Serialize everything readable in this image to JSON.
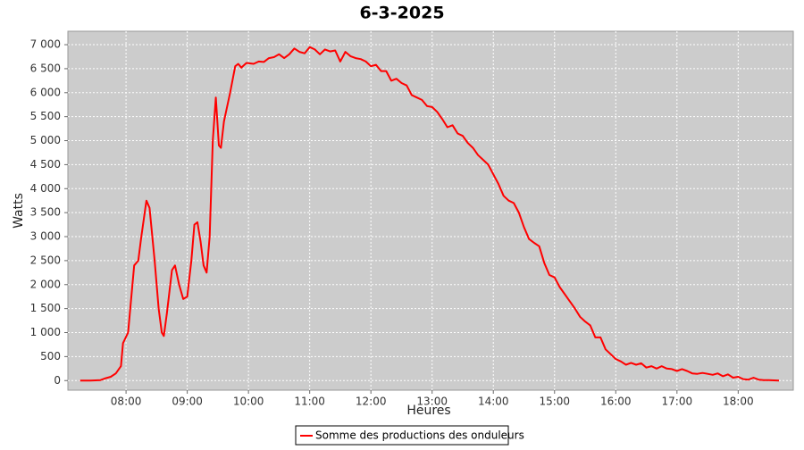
{
  "chart_data": {
    "type": "line",
    "title": "6-3-2025",
    "x_label": "Heures",
    "y_label": "Watts",
    "x": [
      "07:15",
      "07:25",
      "07:35",
      "07:40",
      "07:45",
      "07:50",
      "07:55",
      "07:57",
      "08:02",
      "08:05",
      "08:08",
      "08:12",
      "08:15",
      "08:20",
      "08:23",
      "08:28",
      "08:32",
      "08:35",
      "08:37",
      "08:40",
      "08:45",
      "08:48",
      "08:52",
      "08:56",
      "09:00",
      "09:04",
      "09:07",
      "09:10",
      "09:13",
      "09:16",
      "09:19",
      "09:22",
      "09:25",
      "09:28",
      "09:31",
      "09:33",
      "09:36",
      "09:42",
      "09:47",
      "09:50",
      "09:53",
      "09:58",
      "10:05",
      "10:10",
      "10:15",
      "10:20",
      "10:25",
      "10:30",
      "10:35",
      "10:40",
      "10:45",
      "10:50",
      "10:55",
      "11:00",
      "11:05",
      "11:10",
      "11:15",
      "11:20",
      "11:25",
      "11:30",
      "11:35",
      "11:40",
      "11:45",
      "11:50",
      "11:55",
      "12:00",
      "12:05",
      "12:10",
      "12:15",
      "12:20",
      "12:25",
      "12:30",
      "12:35",
      "12:40",
      "12:45",
      "12:50",
      "12:55",
      "13:00",
      "13:05",
      "13:10",
      "13:15",
      "13:20",
      "13:25",
      "13:30",
      "13:35",
      "13:40",
      "13:45",
      "13:50",
      "13:55",
      "14:00",
      "14:05",
      "14:10",
      "14:15",
      "14:20",
      "14:25",
      "14:30",
      "14:35",
      "14:40",
      "14:45",
      "14:50",
      "14:55",
      "15:00",
      "15:05",
      "15:10",
      "15:15",
      "15:20",
      "15:25",
      "15:30",
      "15:35",
      "15:40",
      "15:45",
      "15:50",
      "15:55",
      "16:00",
      "16:05",
      "16:10",
      "16:15",
      "16:20",
      "16:25",
      "16:30",
      "16:35",
      "16:40",
      "16:45",
      "16:50",
      "16:55",
      "17:00",
      "17:05",
      "17:10",
      "17:15",
      "17:20",
      "17:25",
      "17:30",
      "17:35",
      "17:40",
      "17:45",
      "17:50",
      "17:55",
      "18:00",
      "18:05",
      "18:10",
      "18:15",
      "18:20",
      "18:25",
      "18:30",
      "18:35",
      "18:40"
    ],
    "series": [
      {
        "name": "Somme des productions des onduleurs",
        "color": "#ff0000",
        "values": [
          0,
          0,
          10,
          50,
          80,
          150,
          300,
          780,
          1000,
          1700,
          2400,
          2500,
          3000,
          3750,
          3600,
          2500,
          1500,
          1000,
          930,
          1400,
          2300,
          2400,
          2000,
          1700,
          1750,
          2500,
          3250,
          3300,
          2900,
          2400,
          2250,
          3000,
          5000,
          5900,
          4900,
          4850,
          5400,
          6000,
          6550,
          6600,
          6520,
          6620,
          6600,
          6650,
          6640,
          6720,
          6740,
          6800,
          6720,
          6800,
          6920,
          6850,
          6820,
          6950,
          6900,
          6800,
          6900,
          6860,
          6880,
          6650,
          6850,
          6760,
          6720,
          6700,
          6650,
          6550,
          6580,
          6450,
          6450,
          6250,
          6290,
          6200,
          6150,
          5950,
          5900,
          5850,
          5720,
          5700,
          5600,
          5450,
          5280,
          5320,
          5150,
          5100,
          4950,
          4850,
          4700,
          4600,
          4500,
          4300,
          4100,
          3850,
          3750,
          3700,
          3500,
          3200,
          2950,
          2870,
          2800,
          2450,
          2200,
          2150,
          1950,
          1800,
          1650,
          1500,
          1330,
          1230,
          1150,
          900,
          900,
          650,
          550,
          450,
          400,
          330,
          370,
          330,
          360,
          270,
          300,
          250,
          300,
          250,
          240,
          200,
          240,
          200,
          150,
          140,
          160,
          140,
          120,
          150,
          90,
          130,
          60,
          80,
          30,
          20,
          60,
          20,
          10,
          10,
          5,
          0
        ]
      }
    ],
    "xlim": [
      "07:03",
      "18:54"
    ],
    "xticks": [
      "08:00",
      "09:00",
      "10:00",
      "11:00",
      "12:00",
      "13:00",
      "14:00",
      "15:00",
      "16:00",
      "17:00",
      "18:00"
    ],
    "ylim": [
      -200,
      7280
    ],
    "yticks": [
      0,
      {
        "value": 500,
        "label": "500"
      },
      {
        "value": 1000,
        "label": "1 000"
      },
      {
        "value": 1500,
        "label": "1 500"
      },
      {
        "value": 2000,
        "label": "2 000"
      },
      {
        "value": 2500,
        "label": "2 500"
      },
      {
        "value": 3000,
        "label": "3 000"
      },
      {
        "value": 3500,
        "label": "3 500"
      },
      {
        "value": 4000,
        "label": "4 000"
      },
      {
        "value": 4500,
        "label": "4 500"
      },
      {
        "value": 5000,
        "label": "5 000"
      },
      {
        "value": 5500,
        "label": "5 500"
      },
      {
        "value": 6000,
        "label": "6 000"
      },
      {
        "value": 6500,
        "label": "6 500"
      },
      {
        "value": 7000,
        "label": "7 000"
      }
    ],
    "grid": true
  }
}
